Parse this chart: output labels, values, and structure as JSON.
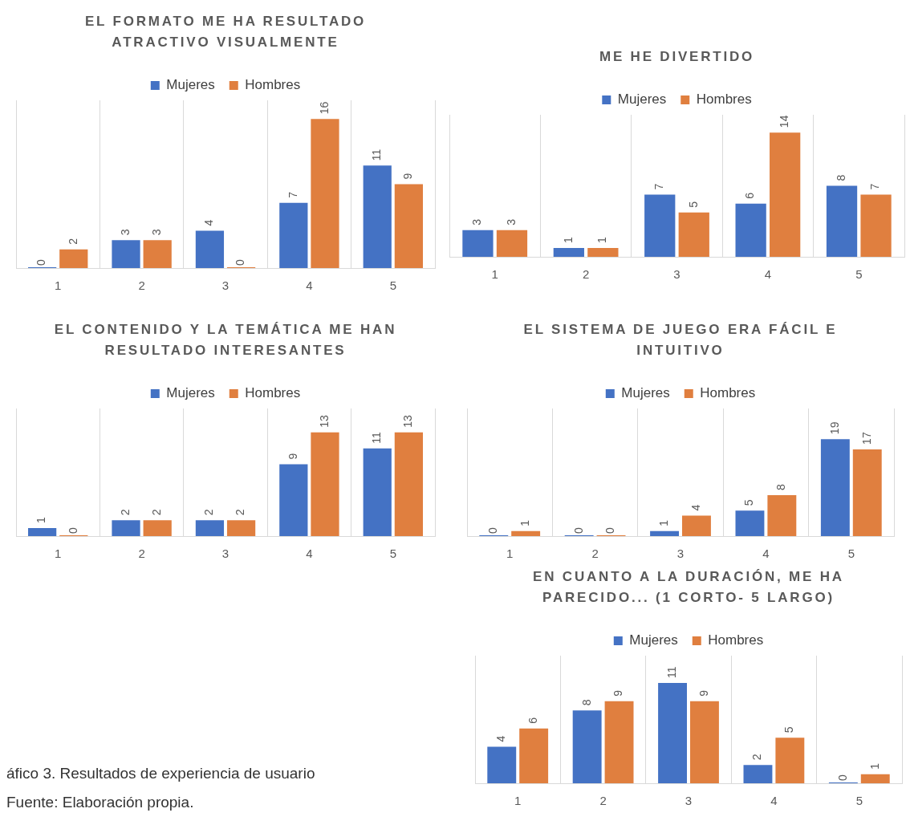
{
  "chart_data": [
    {
      "type": "bar",
      "title": "EL FORMATO ME HA RESULTADO ATRACTIVO VISUALMENTE",
      "categories": [
        "1",
        "2",
        "3",
        "4",
        "5"
      ],
      "series": [
        {
          "name": "Mujeres",
          "color": "#4472c4",
          "values": [
            0,
            3,
            4,
            7,
            11
          ]
        },
        {
          "name": "Hombres",
          "color": "#e07f3f",
          "values": [
            2,
            3,
            0,
            16,
            9
          ]
        }
      ],
      "data_labels": true,
      "grid": "x",
      "legend": "top"
    },
    {
      "type": "bar",
      "title": "ME HE DIVERTIDO",
      "categories": [
        "1",
        "2",
        "3",
        "4",
        "5"
      ],
      "series": [
        {
          "name": "Mujeres",
          "color": "#4472c4",
          "values": [
            3,
            1,
            7,
            6,
            8
          ]
        },
        {
          "name": "Hombres",
          "color": "#e07f3f",
          "values": [
            3,
            1,
            5,
            14,
            7
          ]
        }
      ],
      "data_labels": true,
      "grid": "x",
      "legend": "top"
    },
    {
      "type": "bar",
      "title": "EL CONTENIDO Y LA TEMÁTICA ME HAN RESULTADO INTERESANTES",
      "categories": [
        "1",
        "2",
        "3",
        "4",
        "5"
      ],
      "series": [
        {
          "name": "Mujeres",
          "color": "#4472c4",
          "values": [
            1,
            2,
            2,
            9,
            11
          ]
        },
        {
          "name": "Hombres",
          "color": "#e07f3f",
          "values": [
            0,
            2,
            2,
            13,
            13
          ]
        }
      ],
      "data_labels": true,
      "grid": "x",
      "legend": "top"
    },
    {
      "type": "bar",
      "title": "EL SISTEMA DE JUEGO ERA FÁCIL E INTUITIVO",
      "categories": [
        "1",
        "2",
        "3",
        "4",
        "5"
      ],
      "series": [
        {
          "name": "Mujeres",
          "color": "#4472c4",
          "values": [
            0,
            0,
            1,
            5,
            19
          ]
        },
        {
          "name": "Hombres",
          "color": "#e07f3f",
          "values": [
            1,
            0,
            4,
            8,
            17
          ]
        }
      ],
      "data_labels": true,
      "grid": "x",
      "legend": "top"
    },
    {
      "type": "bar",
      "title": "EN CUANTO A LA DURACIÓN, ME HA PARECIDO... (1 CORTO- 5 LARGO)",
      "categories": [
        "1",
        "2",
        "3",
        "4",
        "5"
      ],
      "series": [
        {
          "name": "Mujeres",
          "color": "#4472c4",
          "values": [
            4,
            8,
            11,
            2,
            0
          ]
        },
        {
          "name": "Hombres",
          "color": "#e07f3f",
          "values": [
            6,
            9,
            9,
            5,
            1
          ]
        }
      ],
      "data_labels": true,
      "grid": "x",
      "legend": "top",
      "annotations": [
        "áfico 3. Resultados de experiencia de usuario",
        "Fuente: Elaboración propia."
      ]
    }
  ]
}
